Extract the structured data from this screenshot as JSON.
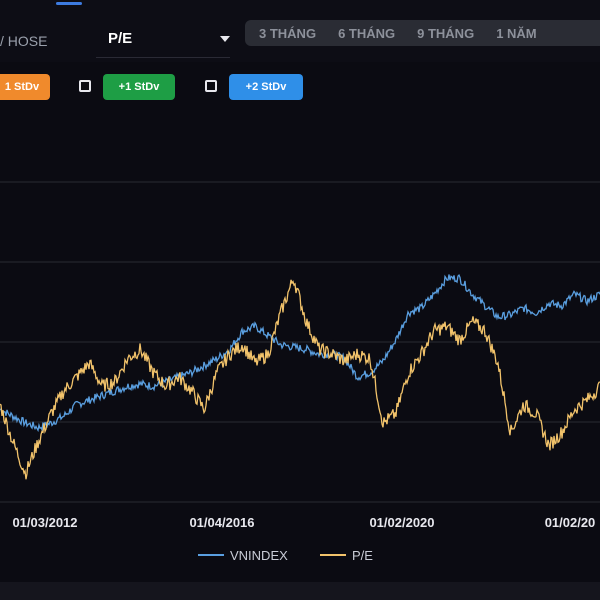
{
  "header": {
    "exchange_label": "/ HOSE",
    "metric_selected": "P/E",
    "periods": [
      "3 THÁNG",
      "6 THÁNG",
      "9 THÁNG",
      "1 NĂM"
    ]
  },
  "bands": [
    {
      "label": "1 StDv",
      "color": "#f08a2c",
      "checked": null
    },
    {
      "label": "+1 StDv",
      "color": "#1e9e45",
      "checked": false
    },
    {
      "label": "+2 StDv",
      "color": "#2f8fe8",
      "checked": false
    }
  ],
  "chart_data": {
    "type": "line",
    "x_tick_labels": [
      "01/03/2012",
      "01/04/2016",
      "01/02/2020",
      "01/02/20"
    ],
    "legend": [
      "VNINDEX",
      "P/E"
    ],
    "legend_position": "bottom",
    "grid": true,
    "series": [
      {
        "name": "VNINDEX",
        "color": "#5a9fe0",
        "relative_level_note": "",
        "values": [
          0.36,
          0.33,
          0.3,
          0.28,
          0.3,
          0.33,
          0.38,
          0.4,
          0.42,
          0.44,
          0.46,
          0.47,
          0.46,
          0.48,
          0.5,
          0.52,
          0.55,
          0.58,
          0.62,
          0.7,
          0.72,
          0.68,
          0.64,
          0.63,
          0.62,
          0.6,
          0.6,
          0.58,
          0.5,
          0.52,
          0.57,
          0.66,
          0.78,
          0.8,
          0.86,
          0.93,
          0.93,
          0.86,
          0.81,
          0.76,
          0.77,
          0.8,
          0.78,
          0.82,
          0.81,
          0.86,
          0.83,
          0.86
        ]
      },
      {
        "name": "P/E",
        "color": "#f2c36b",
        "values": [
          0.38,
          0.22,
          0.08,
          0.22,
          0.34,
          0.44,
          0.5,
          0.56,
          0.46,
          0.48,
          0.58,
          0.62,
          0.52,
          0.46,
          0.5,
          0.44,
          0.36,
          0.52,
          0.6,
          0.64,
          0.56,
          0.6,
          0.78,
          0.93,
          0.74,
          0.62,
          0.6,
          0.57,
          0.6,
          0.58,
          0.3,
          0.34,
          0.52,
          0.6,
          0.7,
          0.72,
          0.66,
          0.74,
          0.7,
          0.56,
          0.26,
          0.38,
          0.34,
          0.2,
          0.26,
          0.36,
          0.4,
          0.46
        ]
      }
    ]
  }
}
